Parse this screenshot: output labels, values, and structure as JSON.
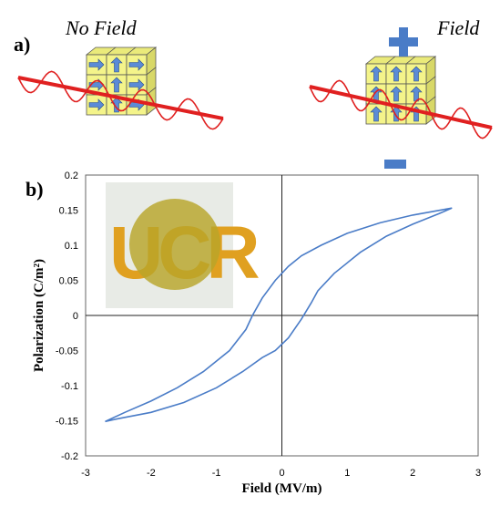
{
  "panel_a": {
    "label": "a)",
    "left": {
      "title": "No Field",
      "arrows": [
        "right",
        "up",
        "right",
        "right",
        "up",
        "right",
        "right",
        "up",
        "right"
      ]
    },
    "right": {
      "title": "Field",
      "arrows": [
        "up",
        "up",
        "up",
        "up",
        "up",
        "up",
        "up",
        "up",
        "up"
      ],
      "plus_sign": "+",
      "minus_sign": "−"
    }
  },
  "panel_b": {
    "label": "b)",
    "inset_letters": "UCR"
  },
  "chart_data": {
    "type": "line",
    "xlabel": "Field (MV/m)",
    "ylabel": "Polarization (C/m²)",
    "xlim": [
      -3,
      3
    ],
    "ylim": [
      -0.2,
      0.2
    ],
    "x_ticks": [
      "-3",
      "-2",
      "-1",
      "0",
      "1",
      "2",
      "3"
    ],
    "y_ticks": [
      "0.2",
      "0.15",
      "0.1",
      "0.05",
      "0",
      "-0.05",
      "-0.1",
      "-0.15",
      "-0.2"
    ],
    "series": [
      {
        "color": "#4a7cc7",
        "x": [
          2.6,
          2.0,
          1.5,
          1.0,
          0.6,
          0.3,
          0.1,
          -0.1,
          -0.3,
          -0.45,
          -0.55,
          -0.8,
          -1.2,
          -1.6,
          -2.0,
          -2.4,
          -2.7,
          -2.5,
          -2.0,
          -1.5,
          -1.0,
          -0.6,
          -0.3,
          -0.1,
          0.1,
          0.3,
          0.45,
          0.55,
          0.8,
          1.2,
          1.6,
          2.0,
          2.4,
          2.6
        ],
        "y": [
          0.153,
          0.143,
          0.132,
          0.117,
          0.1,
          0.085,
          0.07,
          0.05,
          0.025,
          0.0,
          -0.02,
          -0.05,
          -0.08,
          -0.103,
          -0.122,
          -0.138,
          -0.151,
          -0.147,
          -0.138,
          -0.124,
          -0.103,
          -0.08,
          -0.06,
          -0.05,
          -0.032,
          -0.005,
          0.018,
          0.035,
          0.06,
          0.09,
          0.113,
          0.13,
          0.145,
          0.153
        ]
      }
    ]
  },
  "colors": {
    "curve": "#4a7cc7",
    "cube_face": "#f4f48a",
    "arrow": "#5b8bd6",
    "wave": "#e02020"
  }
}
